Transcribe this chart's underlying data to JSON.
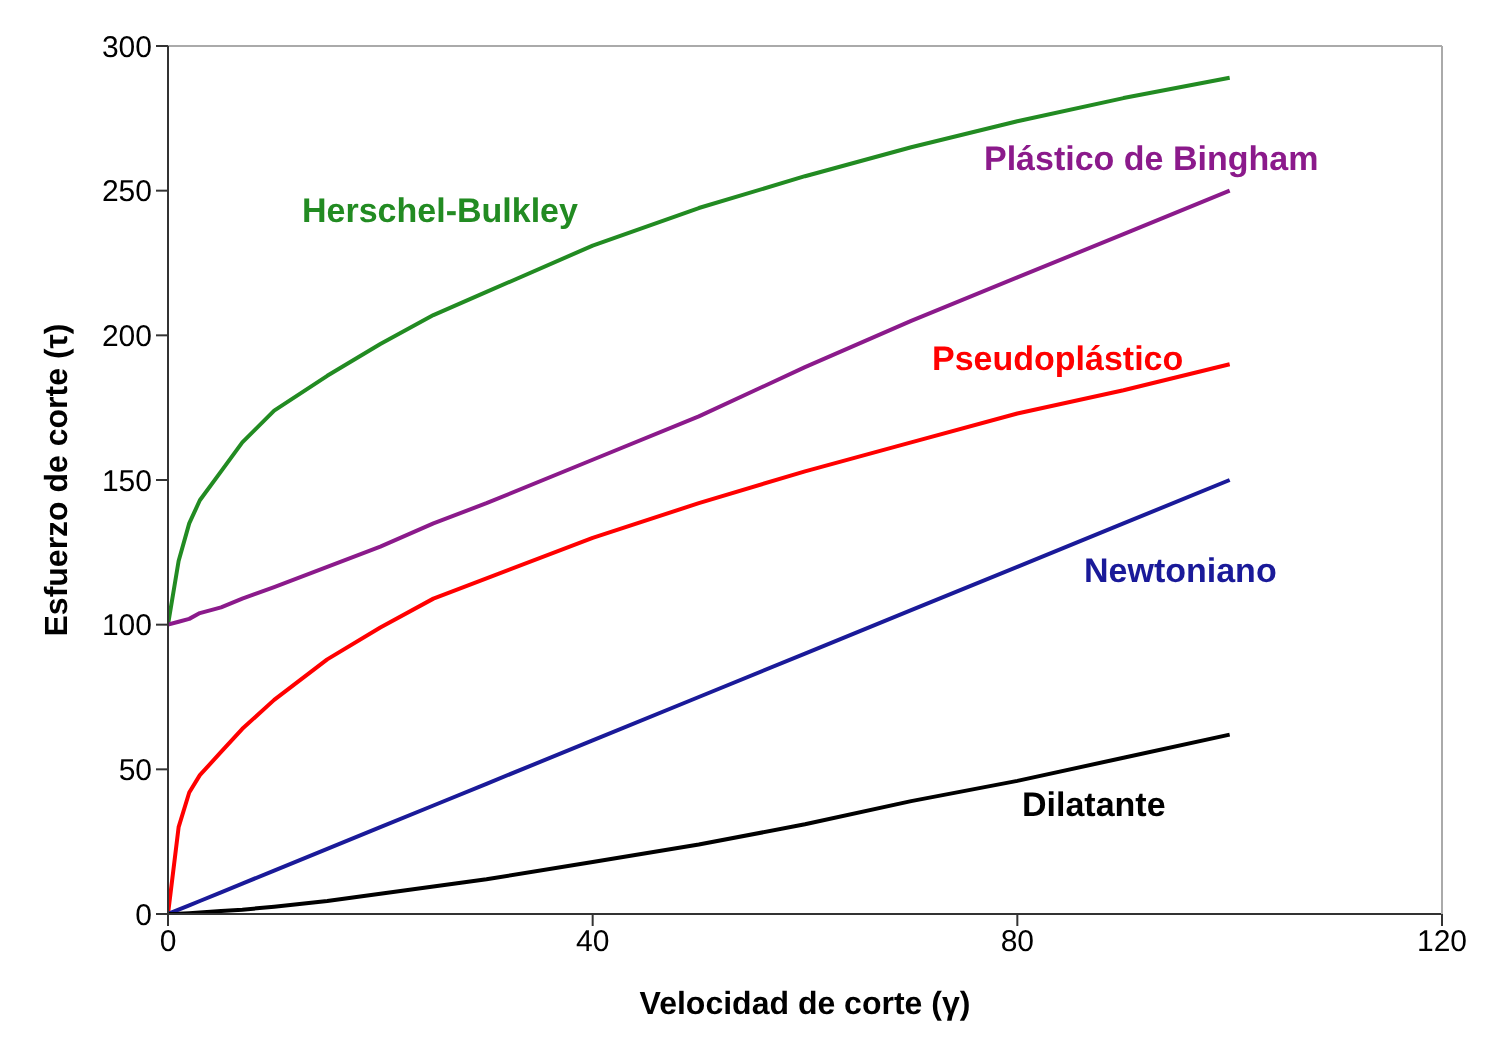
{
  "chart_data": {
    "type": "line",
    "xlabel": "Velocidad de corte (γ)",
    "ylabel": "Esfuerzo de corte (τ)",
    "x": [
      0,
      1,
      2,
      3,
      5,
      7,
      10,
      15,
      20,
      25,
      30,
      40,
      50,
      60,
      70,
      80,
      90,
      100
    ],
    "series": [
      {
        "name": "Herschel-Bulkley",
        "color": "#228b22",
        "values": [
          100,
          122,
          135,
          143,
          153,
          163,
          174,
          186,
          197,
          207,
          215,
          231,
          244,
          255,
          265,
          274,
          282,
          289
        ]
      },
      {
        "name": "Plástico de Bingham",
        "color": "#8b1a8b",
        "values": [
          100,
          101,
          102,
          104,
          106,
          109,
          113,
          120,
          127,
          135,
          142,
          157,
          172,
          189,
          205,
          220,
          235,
          250
        ]
      },
      {
        "name": "Pseudoplástico",
        "color": "#ff0000",
        "values": [
          0,
          30,
          42,
          48,
          56,
          64,
          74,
          88,
          99,
          109,
          116,
          130,
          142,
          153,
          163,
          173,
          181,
          190
        ]
      },
      {
        "name": "Newtoniano",
        "color": "#1a1a99",
        "values": [
          0,
          1.5,
          3,
          4.5,
          7.5,
          10.5,
          15,
          22.5,
          30,
          37.5,
          45,
          60,
          75,
          90,
          105,
          120,
          135,
          150
        ]
      },
      {
        "name": "Dilatante",
        "color": "#000000",
        "values": [
          0,
          0.1,
          0.3,
          0.5,
          1,
          1.5,
          2.5,
          4.5,
          7,
          9.5,
          12,
          18,
          24,
          31,
          39,
          46,
          54,
          62
        ]
      }
    ],
    "xlim": [
      0,
      120
    ],
    "xticks": [
      0,
      40,
      80,
      120
    ],
    "ylim": [
      0,
      300
    ],
    "yticks": [
      0,
      50,
      100,
      150,
      200,
      250,
      300
    ],
    "grid": false,
    "legend": false,
    "marker": "none",
    "line_style": "solid"
  }
}
